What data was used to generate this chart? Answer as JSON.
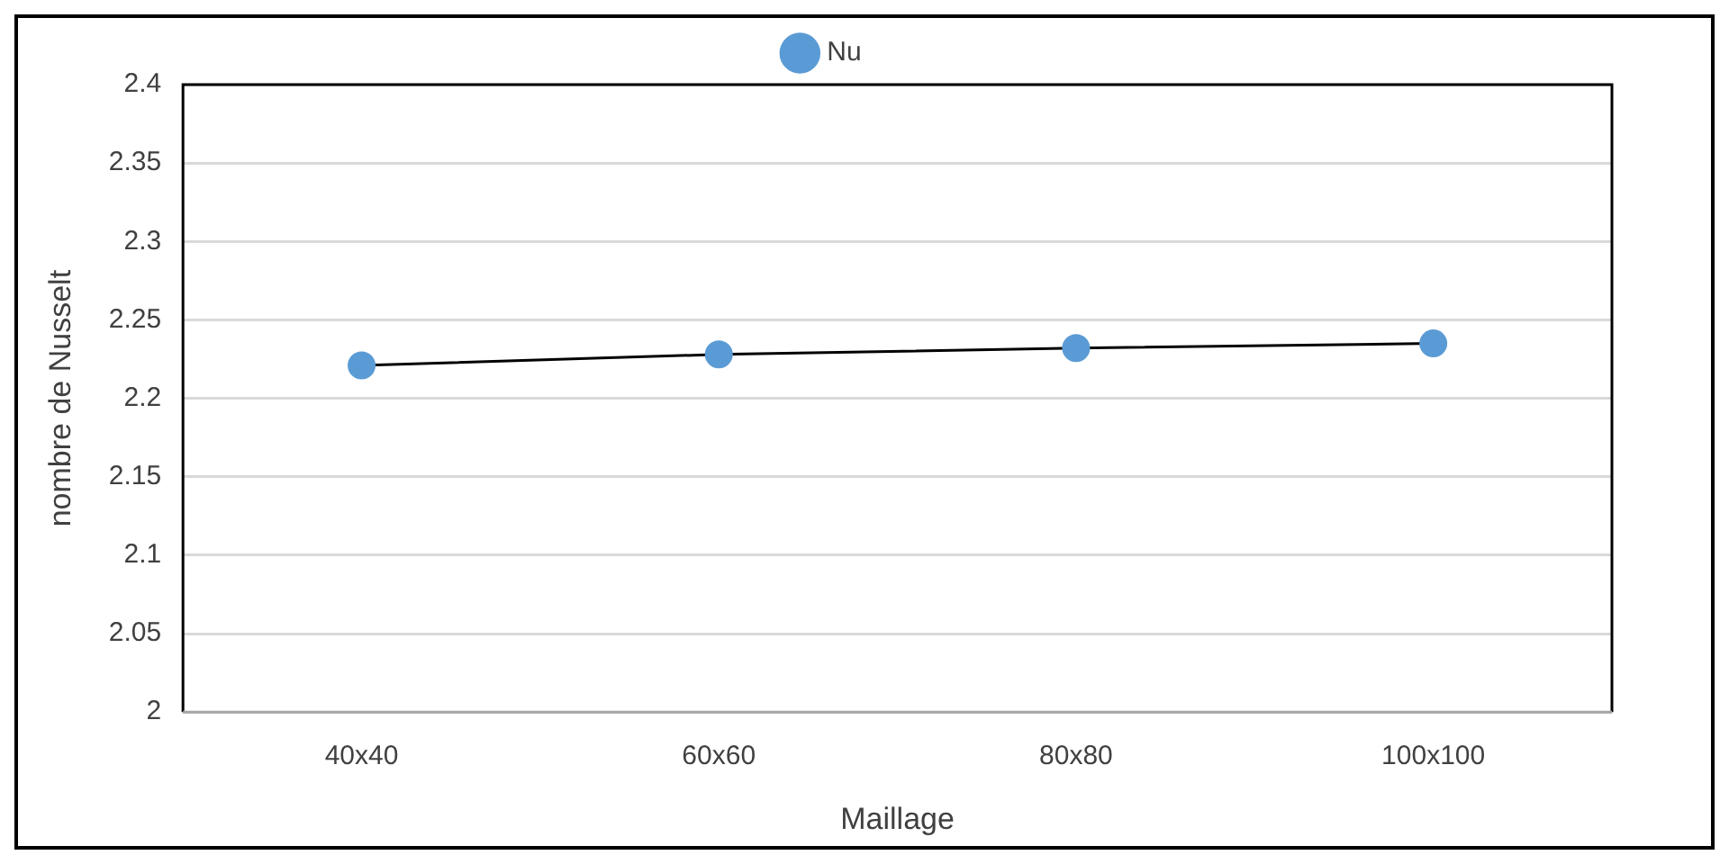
{
  "chart_data": {
    "type": "line",
    "xlabel": "Maillage",
    "ylabel": "nombre de Nusselt",
    "categories": [
      "40x40",
      "60x60",
      "80x80",
      "100x100"
    ],
    "series": [
      {
        "name": "Nu",
        "color": "#5b9bd5",
        "values": [
          2.221,
          2.228,
          2.232,
          2.235
        ]
      }
    ],
    "ylim": [
      2,
      2.4
    ],
    "yticks": [
      2,
      2.05,
      2.1,
      2.15,
      2.2,
      2.25,
      2.3,
      2.35,
      2.4
    ],
    "grid": "y",
    "legend": "top",
    "marker": "circle",
    "line_style": "solid"
  }
}
